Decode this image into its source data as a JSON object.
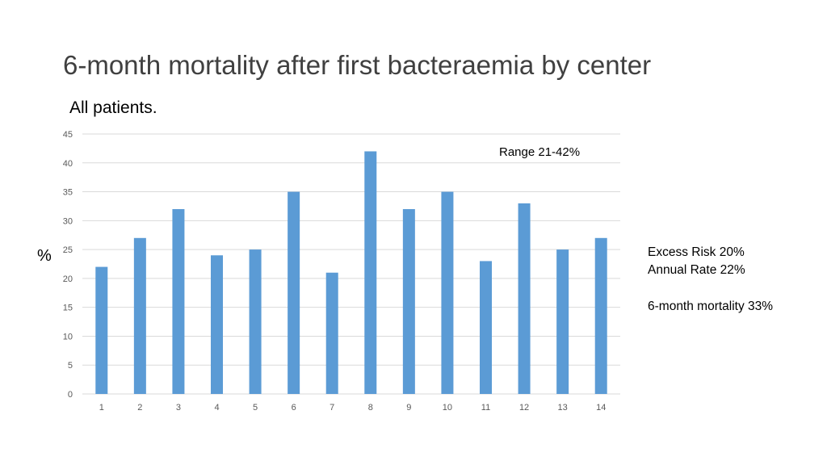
{
  "title": "6-month mortality after first bacteraemia by center",
  "subtitle": "All patients.",
  "notes": {
    "excess_risk": "Excess Risk   20%",
    "annual_rate": "Annual Rate 22%",
    "six_month_mortality": "6-month mortality 33%"
  },
  "colors": {
    "bar": "#5b9bd5",
    "grid": "#d9d9d9"
  },
  "chart_data": {
    "type": "bar",
    "categories": [
      "1",
      "2",
      "3",
      "4",
      "5",
      "6",
      "7",
      "8",
      "9",
      "10",
      "11",
      "12",
      "13",
      "14"
    ],
    "values": [
      22,
      27,
      32,
      24,
      25,
      35,
      21,
      42,
      32,
      35,
      23,
      33,
      25,
      27
    ],
    "ylabel": "%",
    "ylim": [
      0,
      45
    ],
    "yticks": [
      0,
      5,
      10,
      15,
      20,
      25,
      30,
      35,
      40,
      45
    ],
    "grid": true,
    "annotation": "Range 21-42%"
  }
}
